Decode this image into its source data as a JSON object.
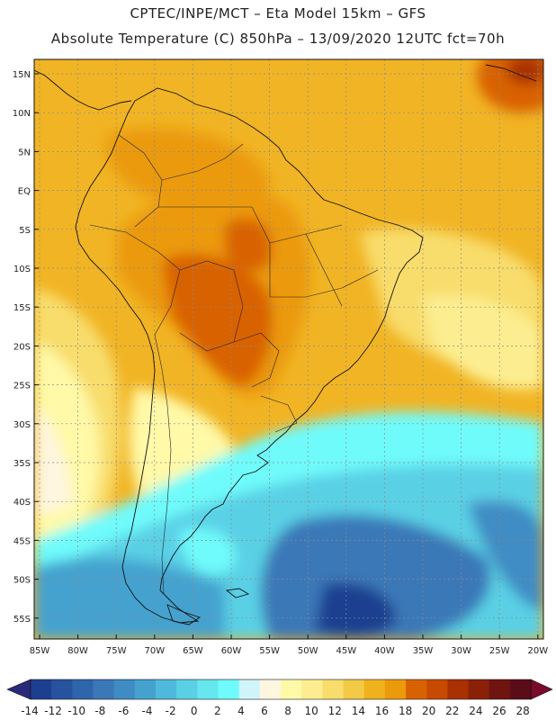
{
  "title_line1": "CPTEC/INPE/MCT –  Eta Model 15km – GFS",
  "title_line2": "Absolute Temperature (C) 850hPa – 13/09/2020 12UTC fct=70h",
  "lat_labels": [
    "15N",
    "10N",
    "5N",
    "EQ",
    "5S",
    "10S",
    "15S",
    "20S",
    "25S",
    "30S",
    "35S",
    "40S",
    "45S",
    "50S",
    "55S"
  ],
  "lon_labels": [
    "85W",
    "80W",
    "75W",
    "70W",
    "65W",
    "60W",
    "55W",
    "50W",
    "45W",
    "40W",
    "35W",
    "30W",
    "25W",
    "20W"
  ],
  "colorbar": {
    "values": [
      "-14",
      "-12",
      "-10",
      "-8",
      "-6",
      "-4",
      "-2",
      "0",
      "2",
      "4",
      "6",
      "8",
      "10",
      "12",
      "14",
      "16",
      "18",
      "20",
      "22",
      "24",
      "26",
      "28"
    ],
    "colors": [
      "#1d3f8f",
      "#27539e",
      "#2f65ac",
      "#3a78b8",
      "#3f8cc4",
      "#45a2cf",
      "#4fb9db",
      "#5ad0e5",
      "#66e6ef",
      "#6ffbfb",
      "#cff5fa",
      "#fff6e0",
      "#fff9a8",
      "#fcee90",
      "#f8dd6c",
      "#f3ca45",
      "#f0b21c",
      "#eb9a0c",
      "#d96200",
      "#c84a00",
      "#a93100",
      "#8a2008",
      "#701410",
      "#5a0c18"
    ],
    "left_arrow_color": "#2a2a7a",
    "right_arrow_color": "#7a0a2a"
  },
  "field_colors": {
    "ocean_warm": "#f1b424",
    "orange": "#eb9a0c",
    "hot": "#d96200",
    "pale": "#fff9a8",
    "light_yellow": "#fcee90",
    "cyan": "#6ffbfb",
    "light_cyan": "#cff5fa",
    "blue": "#45a2cf",
    "deep_blue": "#2f65ac"
  }
}
